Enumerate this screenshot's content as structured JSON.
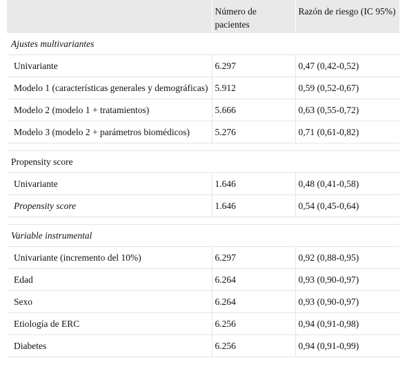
{
  "headers": [
    "",
    "Número de pacientes",
    "Razón de riesgo (IC 95%)"
  ],
  "sections": [
    {
      "title": "Ajustes multivariantes",
      "title_italic": true,
      "rows": [
        {
          "label": "Univariante",
          "n": "6.297",
          "hr": "0,47 (0,42-0,52)"
        },
        {
          "label": "Modelo 1 (características generales y demográficas)",
          "n": "5.912",
          "hr": "0,59 (0,52-0,67)"
        },
        {
          "label": "Modelo 2 (modelo 1 + tratamientos)",
          "n": "5.666",
          "hr": "0,63 (0,55-0,72)"
        },
        {
          "label": "Modelo 3 (modelo 2 + parámetros biomédicos)",
          "n": "5.276",
          "hr": "0,71 (0,61-0,82)"
        }
      ]
    },
    {
      "title": "Propensity score",
      "title_italic": false,
      "rows": [
        {
          "label": "Univariante",
          "n": "1.646",
          "hr": "0,48 (0,41-0,58)"
        },
        {
          "label": "Propensity score",
          "n": "1.646",
          "hr": "0,54 (0,45-0,64)",
          "italic": true
        }
      ]
    },
    {
      "title": "Variable instrumental",
      "title_italic": true,
      "rows": [
        {
          "label": "Univariante (incremento del 10%)",
          "n": "6.297",
          "hr": "0,92 (0,88-0,95)"
        },
        {
          "label": "Edad",
          "n": "6.264",
          "hr": "0,93 (0,90-0,97)"
        },
        {
          "label": "Sexo",
          "n": "6.264",
          "hr": "0,93 (0,90-0,97)"
        },
        {
          "label": "Etiología de ERC",
          "n": "6.256",
          "hr": "0,94 (0,91-0,98)"
        },
        {
          "label": "Diabetes",
          "n": "6.256",
          "hr": "0,94 (0,91-0,99)"
        }
      ]
    }
  ]
}
